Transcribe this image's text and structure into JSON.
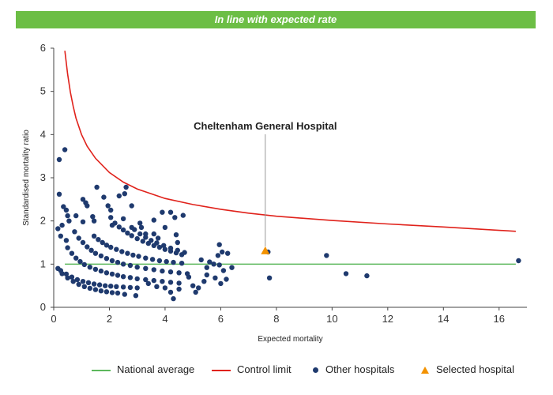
{
  "banner": {
    "text": "In line with expected rate",
    "color": "#6cbe45"
  },
  "chart_data": {
    "type": "scatter",
    "xlabel": "Expected mortality",
    "ylabel": "Standardised mortality ratio",
    "xlim": [
      0,
      17
    ],
    "ylim": [
      0,
      6
    ],
    "xticks": [
      0,
      2,
      4,
      6,
      8,
      10,
      12,
      14,
      16
    ],
    "yticks": [
      0,
      1,
      2,
      3,
      4,
      5,
      6
    ],
    "grid": false,
    "legend_position": "bottom",
    "annotation": {
      "text": "Cheltenham General Hospital",
      "x": 7.6,
      "y": 1.3
    },
    "national_average": {
      "name": "National average",
      "y": 1,
      "x_range": [
        0.4,
        16.6
      ],
      "color": "#5cb85c"
    },
    "control_limit": {
      "name": "Control limit",
      "color": "#e0221b",
      "points": [
        [
          0.4,
          5.94
        ],
        [
          0.5,
          5.4
        ],
        [
          0.6,
          4.98
        ],
        [
          0.7,
          4.65
        ],
        [
          0.8,
          4.38
        ],
        [
          1.0,
          4.0
        ],
        [
          1.2,
          3.73
        ],
        [
          1.5,
          3.45
        ],
        [
          2.0,
          3.12
        ],
        [
          2.5,
          2.9
        ],
        [
          3.0,
          2.74
        ],
        [
          4.0,
          2.52
        ],
        [
          5.0,
          2.38
        ],
        [
          6.0,
          2.27
        ],
        [
          7.0,
          2.18
        ],
        [
          8.0,
          2.11
        ],
        [
          10.0,
          2.01
        ],
        [
          12.0,
          1.93
        ],
        [
          14.0,
          1.86
        ],
        [
          16.6,
          1.76
        ]
      ]
    },
    "series": [
      {
        "name": "Other hospitals",
        "color": "#1f3a6e",
        "marker": "circle",
        "points": [
          [
            0.2,
            3.42
          ],
          [
            0.4,
            3.65
          ],
          [
            0.2,
            2.62
          ],
          [
            0.35,
            2.33
          ],
          [
            0.45,
            2.25
          ],
          [
            0.5,
            2.12
          ],
          [
            0.55,
            2.0
          ],
          [
            0.8,
            2.12
          ],
          [
            0.3,
            1.9
          ],
          [
            0.15,
            1.82
          ],
          [
            0.25,
            1.65
          ],
          [
            0.45,
            1.55
          ],
          [
            0.75,
            1.75
          ],
          [
            1.05,
            2.5
          ],
          [
            1.15,
            2.42
          ],
          [
            1.2,
            2.35
          ],
          [
            1.05,
            1.98
          ],
          [
            1.4,
            2.1
          ],
          [
            1.45,
            2.0
          ],
          [
            1.55,
            2.78
          ],
          [
            1.8,
            2.55
          ],
          [
            1.95,
            2.35
          ],
          [
            2.05,
            2.25
          ],
          [
            2.05,
            2.08
          ],
          [
            2.1,
            1.9
          ],
          [
            2.35,
            2.58
          ],
          [
            2.6,
            2.78
          ],
          [
            2.55,
            2.63
          ],
          [
            2.8,
            2.35
          ],
          [
            2.5,
            2.05
          ],
          [
            3.1,
            1.95
          ],
          [
            3.15,
            1.85
          ],
          [
            3.6,
            2.02
          ],
          [
            3.9,
            2.2
          ],
          [
            4.2,
            2.2
          ],
          [
            4.35,
            2.08
          ],
          [
            4.65,
            2.13
          ],
          [
            2.8,
            1.85
          ],
          [
            3.3,
            1.7
          ],
          [
            3.6,
            1.7
          ],
          [
            3.75,
            1.6
          ],
          [
            4.0,
            1.85
          ],
          [
            4.4,
            1.68
          ],
          [
            4.45,
            1.5
          ],
          [
            0.15,
            0.9
          ],
          [
            0.3,
            0.78
          ],
          [
            0.5,
            0.68
          ],
          [
            0.7,
            0.6
          ],
          [
            0.9,
            0.53
          ],
          [
            1.1,
            0.48
          ],
          [
            1.3,
            0.44
          ],
          [
            1.5,
            0.41
          ],
          [
            1.7,
            0.38
          ],
          [
            1.9,
            0.36
          ],
          [
            2.1,
            0.34
          ],
          [
            2.3,
            0.33
          ],
          [
            2.55,
            0.3
          ],
          [
            2.95,
            0.27
          ],
          [
            0.25,
            0.85
          ],
          [
            0.45,
            0.77
          ],
          [
            0.65,
            0.7
          ],
          [
            0.85,
            0.64
          ],
          [
            1.05,
            0.6
          ],
          [
            1.25,
            0.57
          ],
          [
            1.45,
            0.54
          ],
          [
            1.65,
            0.52
          ],
          [
            1.85,
            0.5
          ],
          [
            2.05,
            0.49
          ],
          [
            2.25,
            0.48
          ],
          [
            2.5,
            0.47
          ],
          [
            2.75,
            0.46
          ],
          [
            3.0,
            0.45
          ],
          [
            0.5,
            1.38
          ],
          [
            0.65,
            1.25
          ],
          [
            0.8,
            1.14
          ],
          [
            0.95,
            1.06
          ],
          [
            1.1,
            0.99
          ],
          [
            1.3,
            0.93
          ],
          [
            1.5,
            0.88
          ],
          [
            1.7,
            0.84
          ],
          [
            1.9,
            0.8
          ],
          [
            2.1,
            0.77
          ],
          [
            2.3,
            0.74
          ],
          [
            2.5,
            0.71
          ],
          [
            2.75,
            0.69
          ],
          [
            3.0,
            0.66
          ],
          [
            3.3,
            0.64
          ],
          [
            3.6,
            0.62
          ],
          [
            3.9,
            0.6
          ],
          [
            4.2,
            0.58
          ],
          [
            4.5,
            0.56
          ],
          [
            0.9,
            1.6
          ],
          [
            1.05,
            1.5
          ],
          [
            1.2,
            1.4
          ],
          [
            1.35,
            1.32
          ],
          [
            1.5,
            1.25
          ],
          [
            1.7,
            1.19
          ],
          [
            1.9,
            1.13
          ],
          [
            2.1,
            1.08
          ],
          [
            2.3,
            1.04
          ],
          [
            2.5,
            1.0
          ],
          [
            2.75,
            0.97
          ],
          [
            3.0,
            0.93
          ],
          [
            3.3,
            0.9
          ],
          [
            3.6,
            0.87
          ],
          [
            3.9,
            0.84
          ],
          [
            4.2,
            0.82
          ],
          [
            4.5,
            0.8
          ],
          [
            4.8,
            0.78
          ],
          [
            1.45,
            1.65
          ],
          [
            1.6,
            1.57
          ],
          [
            1.75,
            1.5
          ],
          [
            1.9,
            1.44
          ],
          [
            2.05,
            1.39
          ],
          [
            2.25,
            1.34
          ],
          [
            2.45,
            1.29
          ],
          [
            2.65,
            1.25
          ],
          [
            2.85,
            1.21
          ],
          [
            3.05,
            1.18
          ],
          [
            3.3,
            1.14
          ],
          [
            3.55,
            1.11
          ],
          [
            3.8,
            1.08
          ],
          [
            4.05,
            1.06
          ],
          [
            4.3,
            1.04
          ],
          [
            4.6,
            1.02
          ],
          [
            2.2,
            1.95
          ],
          [
            2.35,
            1.86
          ],
          [
            2.5,
            1.79
          ],
          [
            2.65,
            1.72
          ],
          [
            2.8,
            1.66
          ],
          [
            3.0,
            1.59
          ],
          [
            3.2,
            1.53
          ],
          [
            3.4,
            1.48
          ],
          [
            3.6,
            1.43
          ],
          [
            3.8,
            1.39
          ],
          [
            4.0,
            1.34
          ],
          [
            4.2,
            1.3
          ],
          [
            4.4,
            1.26
          ],
          [
            4.6,
            1.22
          ],
          [
            2.9,
            1.8
          ],
          [
            3.1,
            1.7
          ],
          [
            3.3,
            1.62
          ],
          [
            3.5,
            1.55
          ],
          [
            3.7,
            1.49
          ],
          [
            3.95,
            1.43
          ],
          [
            4.2,
            1.37
          ],
          [
            4.45,
            1.32
          ],
          [
            4.7,
            1.27
          ],
          [
            3.4,
            0.55
          ],
          [
            3.7,
            0.48
          ],
          [
            4.0,
            0.45
          ],
          [
            4.2,
            0.35
          ],
          [
            4.5,
            0.42
          ],
          [
            4.3,
            0.2
          ],
          [
            4.85,
            0.7
          ],
          [
            5.0,
            0.5
          ],
          [
            5.2,
            0.45
          ],
          [
            5.1,
            0.35
          ],
          [
            5.4,
            0.6
          ],
          [
            5.5,
            0.75
          ],
          [
            5.8,
            0.68
          ],
          [
            6.0,
            0.55
          ],
          [
            6.2,
            0.65
          ],
          [
            5.3,
            1.1
          ],
          [
            5.6,
            1.05
          ],
          [
            5.75,
            1.0
          ],
          [
            5.9,
            1.2
          ],
          [
            5.95,
            1.45
          ],
          [
            6.05,
            1.28
          ],
          [
            6.25,
            1.25
          ],
          [
            5.5,
            0.92
          ],
          [
            6.1,
            0.85
          ],
          [
            6.4,
            0.92
          ],
          [
            5.95,
            0.98
          ],
          [
            7.75,
            0.68
          ],
          [
            7.7,
            1.28
          ],
          [
            9.8,
            1.2
          ],
          [
            10.5,
            0.78
          ],
          [
            11.25,
            0.73
          ],
          [
            16.7,
            1.08
          ]
        ]
      },
      {
        "name": "Selected hospital",
        "color": "#f39200",
        "marker": "triangle",
        "points": [
          [
            7.6,
            1.3
          ]
        ]
      }
    ]
  }
}
